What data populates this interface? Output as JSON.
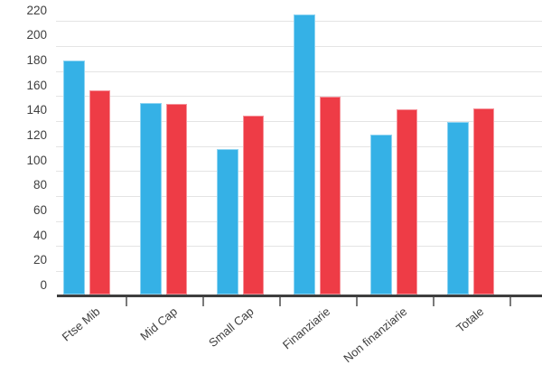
{
  "chart_data": {
    "type": "bar",
    "title": "",
    "xlabel": "",
    "ylabel": "",
    "categories": [
      "Ftse Mib",
      "Mid Cap",
      "Small Cap",
      "Finanziarie",
      "Non finanziarie",
      "Totale"
    ],
    "series": [
      {
        "name": "blue-series",
        "color": "#35b1e6",
        "border_color": "#8ed4f2",
        "values": [
          188,
          154,
          117,
          225,
          129,
          139
        ]
      },
      {
        "name": "red-series",
        "color": "#ee3c46",
        "border_color": "#f6929a",
        "values": [
          164,
          153,
          144,
          159,
          149,
          150
        ]
      }
    ],
    "ylim": [
      0,
      220
    ],
    "y_ticks": [
      0,
      20,
      40,
      60,
      80,
      100,
      120,
      140,
      160,
      180,
      200,
      220
    ],
    "grid": "horizontal",
    "legend": "none"
  },
  "colors": {
    "gridline": "#e4e4e4",
    "axis": "#3e3e3e",
    "tick": "#7a7a7a",
    "label_text": "#3f3f3f",
    "background": "#ffffff"
  }
}
